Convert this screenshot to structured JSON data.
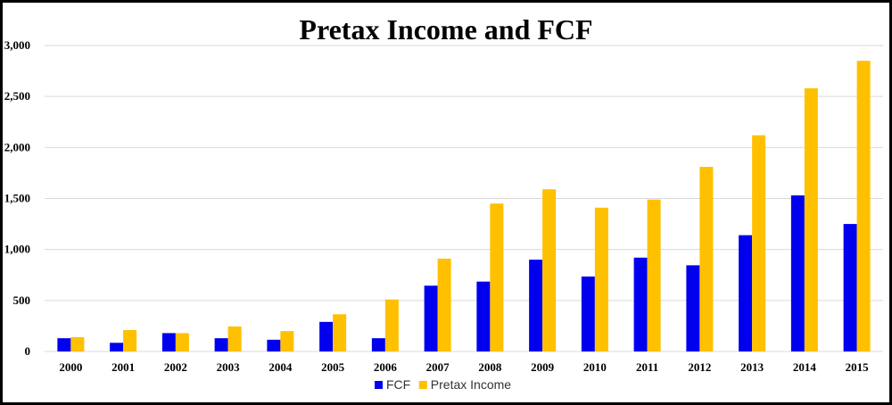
{
  "chart_data": {
    "type": "bar",
    "title": "Pretax Income and FCF",
    "xlabel": "",
    "ylabel": "",
    "categories": [
      "2000",
      "2001",
      "2002",
      "2003",
      "2004",
      "2005",
      "2006",
      "2007",
      "2008",
      "2009",
      "2010",
      "2011",
      "2012",
      "2013",
      "2014",
      "2015"
    ],
    "series": [
      {
        "name": "FCF",
        "color": "#0000ee",
        "values": [
          130,
          85,
          180,
          130,
          115,
          290,
          130,
          645,
          685,
          900,
          735,
          920,
          845,
          1140,
          1530,
          1250
        ]
      },
      {
        "name": "Pretax Income",
        "color": "#ffc000",
        "values": [
          140,
          210,
          180,
          245,
          200,
          365,
          510,
          910,
          1450,
          1590,
          1410,
          1490,
          1810,
          2120,
          2580,
          2850
        ]
      }
    ],
    "ylim": [
      0,
      3000
    ],
    "yticks": [
      0,
      500,
      1000,
      1500,
      2000,
      2500,
      3000
    ],
    "ytick_labels": [
      "0",
      "500",
      "1,000",
      "1,500",
      "2,000",
      "2,500",
      "3,000"
    ],
    "grid": true,
    "legend_position": "bottom"
  }
}
